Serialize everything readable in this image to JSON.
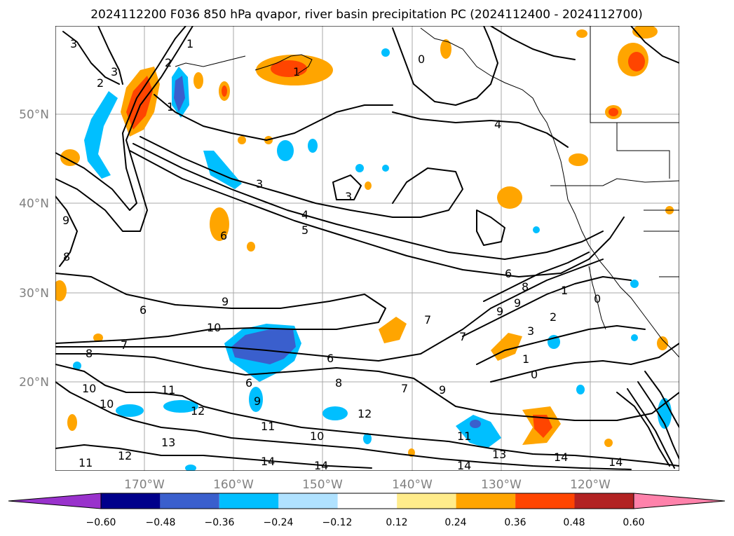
{
  "title": "2024112200 F036 850 hPa qvapor, river basin precipitation PC (2024112400 - 2024112700)",
  "axes": {
    "lat_labels": [
      "50°N",
      "40°N",
      "30°N",
      "20°N"
    ],
    "lon_labels": [
      "170°W",
      "160°W",
      "150°W",
      "140°W",
      "130°W",
      "120°W"
    ]
  },
  "colorbar": {
    "ticks": [
      "−0.60",
      "−0.48",
      "−0.36",
      "−0.24",
      "−0.12",
      "0.12",
      "0.24",
      "0.36",
      "0.48",
      "0.60"
    ],
    "colors": [
      "#9932cc",
      "#00008b",
      "#3a5fcd",
      "#00bfff",
      "#b0e2ff",
      "#ffffff",
      "#ffec8b",
      "#ffa500",
      "#ff4500",
      "#b22222",
      "#ff82ab"
    ]
  },
  "contour_labels": [
    "3",
    "2",
    "3",
    "1",
    "2",
    "1",
    "0",
    "1",
    "4",
    "3",
    "3",
    "4",
    "5",
    "6",
    "9",
    "8",
    "6",
    "9",
    "10",
    "8",
    "7",
    "6",
    "8",
    "9",
    "9",
    "7",
    "7",
    "1",
    "6",
    "6",
    "8",
    "9",
    "7",
    "3",
    "2",
    "0",
    "1",
    "0",
    "9",
    "10",
    "11",
    "12",
    "12",
    "10",
    "10",
    "11",
    "13",
    "12",
    "11",
    "14",
    "14",
    "13",
    "14",
    "14",
    "11",
    "14"
  ]
}
